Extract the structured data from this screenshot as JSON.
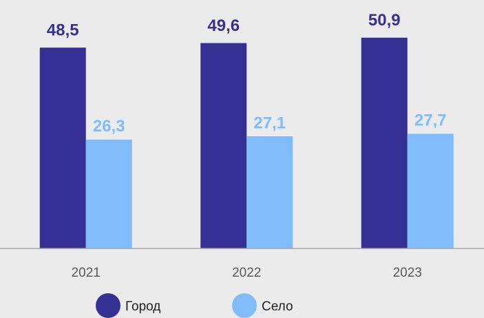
{
  "chart_data": {
    "type": "bar",
    "categories": [
      "2021",
      "2022",
      "2023"
    ],
    "series": [
      {
        "name": "Город",
        "color": "#353093",
        "values": [
          48.5,
          49.6,
          50.9
        ],
        "value_labels": [
          "48,5",
          "49,6",
          "50,9"
        ]
      },
      {
        "name": "Село",
        "color": "#80bcfa",
        "values": [
          26.3,
          27.1,
          27.7
        ],
        "value_labels": [
          "26,3",
          "27,1",
          "27,7"
        ]
      }
    ],
    "ylim": [
      0,
      60
    ],
    "legend": "bottom"
  }
}
